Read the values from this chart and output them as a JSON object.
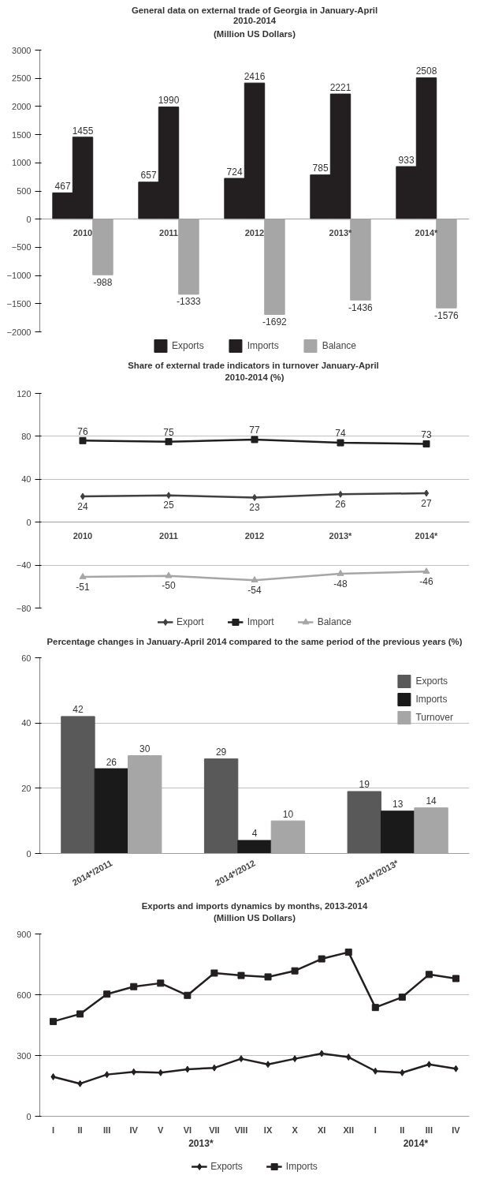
{
  "chart_data": [
    {
      "type": "bar",
      "title": "General data on external trade of Georgia in January-April\n2010-2014\n(Million US Dollars)",
      "categories": [
        "2010",
        "2011",
        "2012",
        "2013*",
        "2014*"
      ],
      "series": [
        {
          "name": "Exports",
          "color": "#231f20",
          "values": [
            467,
            657,
            724,
            785,
            933
          ]
        },
        {
          "name": "Imports",
          "color": "#231f20",
          "values": [
            1455,
            1990,
            2416,
            2221,
            2508
          ]
        },
        {
          "name": "Balance",
          "color": "#a6a6a6",
          "values": [
            -988,
            -1333,
            -1692,
            -1436,
            -1576
          ]
        }
      ],
      "ylim": [
        -2000,
        3000
      ],
      "yticks": [
        -2000,
        -1500,
        -1000,
        -500,
        0,
        500,
        1000,
        1500,
        2000,
        2500,
        3000
      ],
      "grid": false,
      "legend": "bottom",
      "data_labels": true
    },
    {
      "type": "line",
      "title": "Share  of external trade indicators in turnover January-April\n2010-2014 (%)",
      "categories": [
        "2010",
        "2011",
        "2012",
        "2013*",
        "2014*"
      ],
      "series": [
        {
          "name": "Export",
          "color": "#404040",
          "marker": "diamond",
          "values": [
            24,
            25,
            23,
            26,
            27
          ]
        },
        {
          "name": "Import",
          "color": "#1f1f1f",
          "marker": "square",
          "values": [
            76,
            75,
            77,
            74,
            73
          ]
        },
        {
          "name": "Balance",
          "color": "#a6a6a6",
          "marker": "triangle",
          "values": [
            -51,
            -50,
            -54,
            -48,
            -46
          ]
        }
      ],
      "ylim": [
        -80,
        120
      ],
      "yticks": [
        -80,
        -40,
        0,
        40,
        80,
        120
      ],
      "grid": "y",
      "legend": "bottom",
      "data_labels": true
    },
    {
      "type": "bar",
      "title": "Percentage changes in January-April 2014 compared to the same period of the previous years (%)",
      "categories": [
        "2014*/2011",
        "2014*/2012",
        "2014*/2013*"
      ],
      "series": [
        {
          "name": "Exports",
          "color": "#595959",
          "values": [
            42,
            29,
            19
          ]
        },
        {
          "name": "Imports",
          "color": "#1a1a1a",
          "values": [
            26,
            4,
            13
          ]
        },
        {
          "name": "Turnover",
          "color": "#a6a6a6",
          "values": [
            30,
            10,
            14
          ]
        }
      ],
      "ylim": [
        0,
        60
      ],
      "yticks": [
        0,
        20,
        40,
        60
      ],
      "grid": "y",
      "legend": "top right",
      "data_labels": true
    },
    {
      "type": "line",
      "title": "Exports and imports dynamics by months, 2013-2014\n(Million US Dollars)",
      "categories": [
        "I",
        "II",
        "III",
        "IV",
        "V",
        "VI",
        "VII",
        "VIII",
        "IX",
        "X",
        "XI",
        "XII",
        "I",
        "II",
        "III",
        "IV"
      ],
      "series": [
        {
          "name": "Exports",
          "color": "#231f20",
          "marker": "diamond",
          "values": [
            195,
            161,
            206,
            219,
            215,
            232,
            239,
            284,
            256,
            284,
            310,
            292,
            223,
            215,
            256,
            235
          ]
        },
        {
          "name": "Imports",
          "color": "#231f20",
          "marker": "square",
          "values": [
            468,
            505,
            603,
            640,
            657,
            597,
            707,
            695,
            688,
            718,
            777,
            810,
            537,
            588,
            700,
            680
          ]
        }
      ],
      "ylim": [
        0,
        900
      ],
      "yticks": [
        0,
        300,
        600,
        900
      ],
      "grid": "y",
      "legend": "bottom",
      "annotations": [
        "2013*",
        "2014*"
      ]
    }
  ]
}
